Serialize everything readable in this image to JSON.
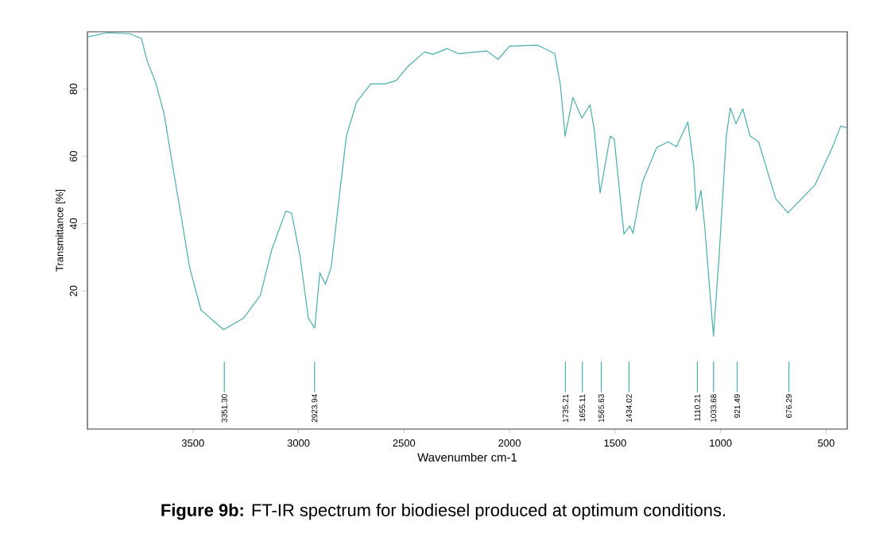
{
  "chart_data": {
    "type": "line",
    "title": "**Figure 9b:** FT-IR spectrum for biodiesel produced at optimum conditions.",
    "xlabel": "Wavenumber cm-1",
    "ylabel": "Transmittance [%]",
    "xlim": [
      4000,
      400
    ],
    "ylim": [
      -21,
      97
    ],
    "xticks": [
      3500,
      3000,
      2500,
      2000,
      1500,
      1000,
      500
    ],
    "yticks": [
      20,
      40,
      60,
      80
    ],
    "grid": false,
    "series": [
      {
        "color": "#4aaead",
        "x": [
          3999,
          3905,
          3798,
          3744,
          3717,
          3677,
          3637,
          3597,
          3556,
          3516,
          3462,
          3355,
          3261,
          3181,
          3127,
          3060,
          3033,
          2993,
          2953,
          2923,
          2899,
          2872,
          2845,
          2805,
          2773,
          2725,
          2658,
          2590,
          2537,
          2483,
          2403,
          2363,
          2295,
          2242,
          2108,
          2054,
          2000,
          1866,
          1786,
          1759,
          1737,
          1700,
          1657,
          1619,
          1598,
          1571,
          1523,
          1504,
          1458,
          1431,
          1415,
          1370,
          1303,
          1249,
          1209,
          1155,
          1128,
          1115,
          1093,
          1075,
          1034,
          1007,
          973,
          954,
          927,
          895,
          860,
          820,
          739,
          681,
          552,
          471,
          431,
          404
        ],
        "values": [
          95.5,
          96.7,
          96.4,
          95,
          88.3,
          82,
          72.7,
          57.5,
          42.3,
          27.1,
          14.4,
          8.5,
          11.9,
          18.7,
          32.2,
          43.7,
          43.2,
          30.5,
          11.9,
          9,
          25.4,
          22,
          27.1,
          49,
          66,
          76.1,
          81.5,
          81.5,
          82.5,
          86.6,
          91,
          90.3,
          92,
          90.5,
          91.3,
          88.8,
          92.7,
          93,
          90.5,
          81.2,
          66,
          77.5,
          71.4,
          75.3,
          67.7,
          49.1,
          66,
          65.1,
          36.9,
          39.3,
          37.2,
          52.4,
          62.6,
          64.3,
          62.9,
          70.2,
          57.5,
          44,
          49.9,
          38.9,
          6.6,
          30.5,
          66,
          74.4,
          69.7,
          74.1,
          66,
          64.3,
          47.4,
          43.2,
          51.6,
          62.6,
          69,
          68.5
        ]
      }
    ],
    "ref_lines": [
      {
        "axis": "x",
        "value": 3351.3,
        "label": "3351.30"
      },
      {
        "axis": "x",
        "value": 2923.94,
        "label": "2923.94"
      },
      {
        "axis": "x",
        "value": 1735.21,
        "label": "1735.21"
      },
      {
        "axis": "x",
        "value": 1655.11,
        "label": "1655.11"
      },
      {
        "axis": "x",
        "value": 1565.63,
        "label": "1565.63"
      },
      {
        "axis": "x",
        "value": 1434.02,
        "label": "1434.02"
      },
      {
        "axis": "x",
        "value": 1110.21,
        "label": "1110.21"
      },
      {
        "axis": "x",
        "value": 1033.68,
        "label": "1033.68"
      },
      {
        "axis": "x",
        "value": 921.49,
        "label": "921.49"
      },
      {
        "axis": "x",
        "value": 676.29,
        "label": "676.29"
      }
    ]
  }
}
